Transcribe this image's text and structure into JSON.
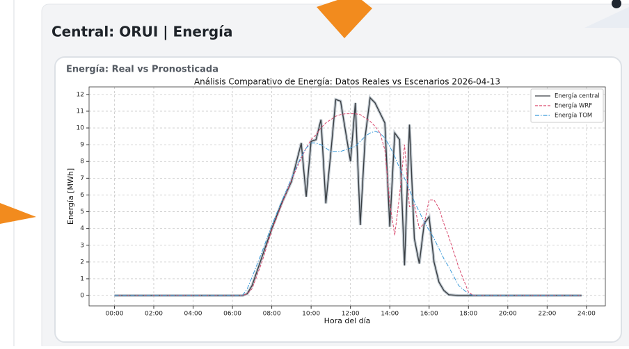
{
  "header": {
    "title": "Central: ORUI | Energía"
  },
  "card": {
    "title": "Energía: Real vs Pronosticada"
  },
  "chart_data": {
    "type": "line",
    "title": "Análisis Comparativo de Energía: Datos Reales vs Escenarios 2026-04-13",
    "xlabel": "Hora del día",
    "ylabel": "Energía [MWh]",
    "x": [
      0,
      6,
      6.5,
      6.75,
      7,
      7.5,
      8,
      8.5,
      9,
      9.5,
      9.75,
      10,
      10.25,
      10.5,
      10.75,
      11,
      11.25,
      11.5,
      11.75,
      12,
      12.25,
      12.5,
      12.75,
      13,
      13.25,
      13.5,
      13.75,
      14,
      14.25,
      14.5,
      14.75,
      15,
      15.25,
      15.5,
      15.75,
      16,
      16.25,
      16.5,
      16.75,
      17,
      17.5,
      18,
      18.25,
      18.5,
      23.75
    ],
    "series": [
      {
        "name": "Energía central",
        "color": "#3a3f44",
        "linestyle": "solid",
        "values": [
          0,
          0,
          0,
          0.1,
          0.6,
          2.3,
          4.0,
          5.5,
          6.8,
          9.1,
          5.9,
          9.2,
          9.3,
          10.5,
          5.5,
          8.5,
          11.7,
          11.6,
          9.8,
          8.0,
          11.5,
          4.2,
          9.5,
          11.8,
          11.5,
          10.9,
          10.3,
          4.1,
          9.7,
          9.3,
          1.8,
          10.2,
          3.4,
          1.9,
          4.3,
          4.7,
          2.0,
          0.8,
          0.3,
          0.05,
          0,
          0,
          0,
          0,
          0
        ]
      },
      {
        "name": "Energía WRF",
        "color": "#d94a6e",
        "linestyle": "dashed",
        "values": [
          0,
          0,
          0,
          0.1,
          0.4,
          2.0,
          3.9,
          5.4,
          6.9,
          8.2,
          8.8,
          9.3,
          9.6,
          10.0,
          10.3,
          10.5,
          10.7,
          10.8,
          10.85,
          10.85,
          10.85,
          10.8,
          10.6,
          10.4,
          10.1,
          9.7,
          8.7,
          5.5,
          3.6,
          6.0,
          9.0,
          5.3,
          5.4,
          4.0,
          4.3,
          5.7,
          5.7,
          5.2,
          4.3,
          3.5,
          1.7,
          0.2,
          0,
          0,
          0
        ]
      },
      {
        "name": "Energía TOM",
        "color": "#3a9ad9",
        "linestyle": "dashdot",
        "values": [
          0,
          0,
          0,
          0.4,
          1.1,
          2.6,
          4.2,
          5.6,
          7.0,
          8.3,
          8.8,
          9.1,
          9.1,
          9.0,
          8.8,
          8.6,
          8.6,
          8.6,
          8.7,
          8.8,
          8.9,
          9.2,
          9.5,
          9.7,
          9.8,
          9.7,
          9.4,
          8.9,
          8.3,
          7.6,
          7.0,
          6.3,
          5.6,
          5.0,
          4.4,
          3.9,
          3.4,
          2.8,
          2.2,
          1.7,
          0.6,
          0.1,
          0,
          0,
          0
        ]
      }
    ],
    "xlim": [
      -1.29,
      24.96
    ],
    "ylim": [
      -0.62,
      12.45
    ],
    "xticks": [
      {
        "value": 0,
        "label": "00:00"
      },
      {
        "value": 2,
        "label": "02:00"
      },
      {
        "value": 4,
        "label": "04:00"
      },
      {
        "value": 6,
        "label": "06:00"
      },
      {
        "value": 8,
        "label": "08:00"
      },
      {
        "value": 10,
        "label": "10:00"
      },
      {
        "value": 12,
        "label": "12:00"
      },
      {
        "value": 14,
        "label": "14:00"
      },
      {
        "value": 16,
        "label": "16:00"
      },
      {
        "value": 18,
        "label": "18:00"
      },
      {
        "value": 20,
        "label": "20:00"
      },
      {
        "value": 22,
        "label": "22:00"
      },
      {
        "value": 24,
        "label": "24:00"
      }
    ],
    "yticks": [
      0,
      1,
      2,
      3,
      4,
      5,
      6,
      7,
      8,
      9,
      10,
      11,
      12
    ],
    "grid": true,
    "legend": "upper right"
  }
}
